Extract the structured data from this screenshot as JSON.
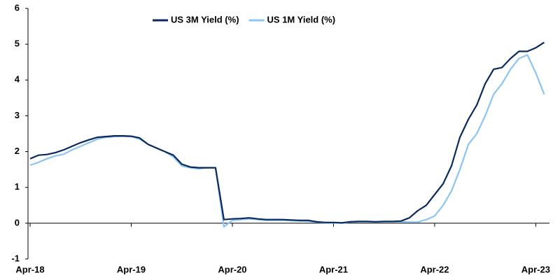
{
  "chart_data": {
    "type": "line",
    "categories": [
      "Apr-18",
      null,
      null,
      null,
      null,
      null,
      null,
      null,
      null,
      null,
      null,
      null,
      "Apr-19",
      null,
      null,
      null,
      null,
      null,
      null,
      null,
      null,
      null,
      null,
      null,
      "Apr-20",
      null,
      null,
      null,
      null,
      null,
      null,
      null,
      null,
      null,
      null,
      null,
      "Apr-21",
      null,
      null,
      null,
      null,
      null,
      null,
      null,
      null,
      null,
      null,
      null,
      "Apr-22",
      null,
      null,
      null,
      null,
      null,
      null,
      null,
      null,
      null,
      null,
      null,
      "Apr-23",
      null
    ],
    "series": [
      {
        "name": "US 3M Yield (%)",
        "color": "#0b2a5b",
        "values": [
          1.8,
          1.9,
          1.92,
          1.97,
          2.05,
          2.15,
          2.25,
          2.33,
          2.4,
          2.42,
          2.44,
          2.44,
          2.43,
          2.38,
          2.2,
          2.1,
          2.0,
          1.9,
          1.65,
          1.57,
          1.55,
          1.55,
          1.55,
          0.1,
          0.12,
          0.13,
          0.15,
          0.12,
          0.1,
          0.1,
          0.1,
          0.09,
          0.08,
          0.08,
          0.04,
          0.02,
          0.02,
          0.01,
          0.04,
          0.05,
          0.05,
          0.04,
          0.05,
          0.05,
          0.06,
          0.15,
          0.35,
          0.5,
          0.8,
          1.1,
          1.6,
          2.4,
          2.9,
          3.3,
          3.9,
          4.3,
          4.35,
          4.6,
          4.8,
          4.8,
          4.9,
          5.05
        ]
      },
      {
        "name": "US 1M Yield (%)",
        "color": "#8cc4f2",
        "values": [
          1.62,
          1.7,
          1.8,
          1.88,
          1.93,
          2.05,
          2.15,
          2.25,
          2.35,
          2.4,
          2.42,
          2.43,
          2.42,
          2.35,
          2.2,
          2.1,
          2.0,
          1.85,
          1.6,
          1.55,
          1.52,
          1.55,
          1.55,
          -0.1,
          0.08,
          0.1,
          0.12,
          0.1,
          0.08,
          0.08,
          0.08,
          0.07,
          0.06,
          0.05,
          0.03,
          0.01,
          0.01,
          0.0,
          0.03,
          0.04,
          0.04,
          0.03,
          0.04,
          0.04,
          0.04,
          0.03,
          0.03,
          0.1,
          0.2,
          0.5,
          0.9,
          1.5,
          2.2,
          2.5,
          3.0,
          3.6,
          3.9,
          4.3,
          4.6,
          4.7,
          4.2,
          3.6
        ]
      }
    ],
    "ylim": [
      -1,
      6
    ],
    "yticks": [
      -1,
      0,
      1,
      2,
      3,
      4,
      5,
      6
    ],
    "grid": false,
    "legend": "top"
  }
}
